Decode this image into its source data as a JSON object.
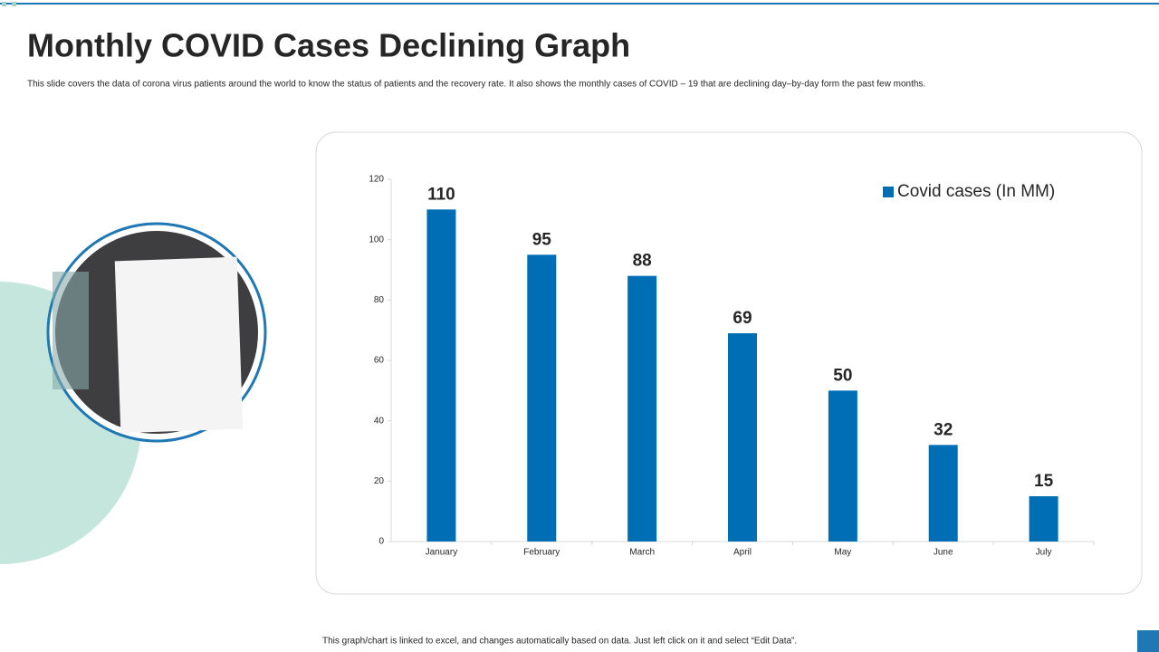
{
  "title": "Monthly COVID Cases Declining Graph",
  "subtitle": "This slide covers the data of corona virus patients around the world  to know the status of patients and the recovery rate. It also shows the monthly cases of COVID – 19 that are declining day–by-day form the past few months.",
  "footnote": "This graph/chart is linked to excel, and changes automatically based on data. Just left click on it and select “Edit Data”.",
  "chart_data": {
    "type": "bar",
    "categories": [
      "January",
      "February",
      "March",
      "April",
      "May",
      "June",
      "July"
    ],
    "series": [
      {
        "name": "Covid cases (In MM)",
        "color": "#006eb4",
        "values": [
          110,
          95,
          88,
          69,
          50,
          32,
          15
        ]
      }
    ],
    "ylim": [
      0,
      120
    ],
    "yticks": [
      0,
      20,
      40,
      60,
      80,
      100,
      120
    ],
    "grid": false,
    "legend": "top-right"
  }
}
